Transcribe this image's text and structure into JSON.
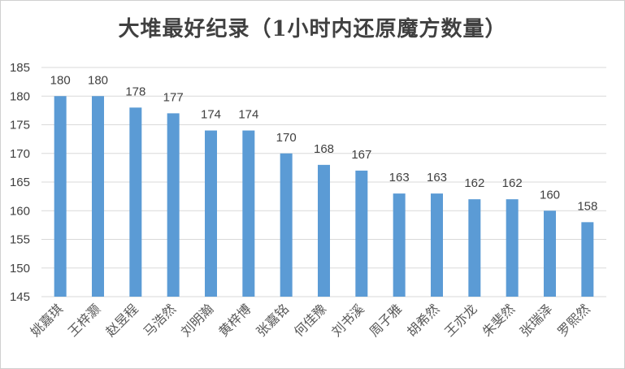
{
  "chart_data": {
    "type": "bar",
    "title": "大堆最好纪录（1小时内还原魔方数量）",
    "xlabel": "",
    "ylabel": "",
    "categories": [
      "姚嘉琪",
      "王梓灏",
      "赵昱程",
      "马浩然",
      "刘明瀚",
      "黄梓博",
      "张嘉铭",
      "何佳豫",
      "刘书溪",
      "周子雅",
      "胡希然",
      "王亦龙",
      "朱斐然",
      "张瑞泽",
      "罗熙然"
    ],
    "values": [
      180,
      180,
      178,
      177,
      174,
      174,
      170,
      168,
      167,
      163,
      163,
      162,
      162,
      160,
      158
    ],
    "ylim": [
      145,
      185
    ],
    "yticks": [
      145,
      150,
      155,
      160,
      165,
      170,
      175,
      180,
      185
    ],
    "grid": true,
    "legend": "none",
    "bar_color": "#5b9bd5",
    "grid_color": "#d9d9d9",
    "text_color": "#404040"
  }
}
